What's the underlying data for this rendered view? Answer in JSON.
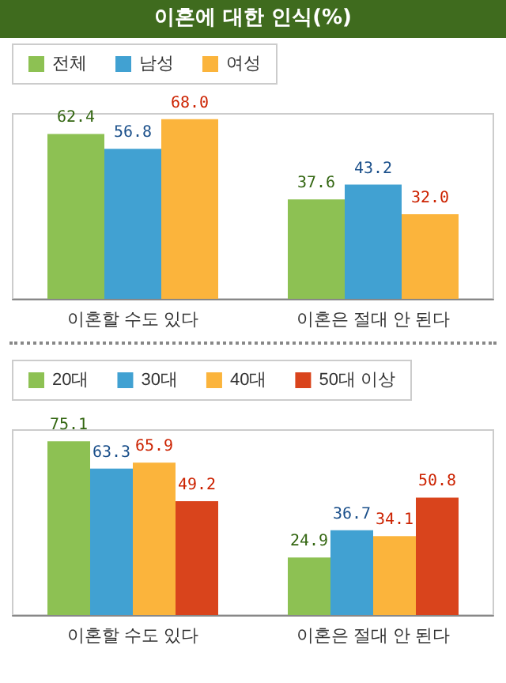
{
  "chart_data": [
    {
      "type": "bar",
      "title": "이혼에 대한 인식(%)",
      "categories": [
        "이혼할 수도 있다",
        "이혼은 절대 안 된다"
      ],
      "legend": "top left",
      "series": [
        {
          "name": "전체",
          "color": "#8dc153",
          "values": [
            62.4,
            37.6
          ],
          "value_labels": [
            "62.4",
            "37.6"
          ]
        },
        {
          "name": "남성",
          "color": "#41a1d2",
          "values": [
            56.8,
            43.2
          ],
          "value_labels": [
            "56.8",
            "43.2"
          ]
        },
        {
          "name": "여성",
          "color": "#fbb43c",
          "values": [
            68.0,
            32.0
          ],
          "value_labels": [
            "68.0",
            "32.0"
          ]
        }
      ]
    },
    {
      "type": "bar",
      "categories": [
        "이혼할 수도 있다",
        "이혼은 절대 안 된다"
      ],
      "legend": "top left",
      "series": [
        {
          "name": "20대",
          "color": "#8dc153",
          "values": [
            75.1,
            24.9
          ],
          "value_labels": [
            "75.1",
            "24.9"
          ]
        },
        {
          "name": "30대",
          "color": "#41a1d2",
          "values": [
            63.3,
            36.7
          ],
          "value_labels": [
            "63.3",
            "36.7"
          ]
        },
        {
          "name": "40대",
          "color": "#fbb43c",
          "values": [
            65.9,
            34.1
          ],
          "value_labels": [
            "65.9",
            "34.1"
          ]
        },
        {
          "name": "50대 이상",
          "color": "#d9441c",
          "values": [
            49.2,
            50.8
          ],
          "value_labels": [
            "49.2",
            "50.8"
          ]
        }
      ]
    }
  ]
}
